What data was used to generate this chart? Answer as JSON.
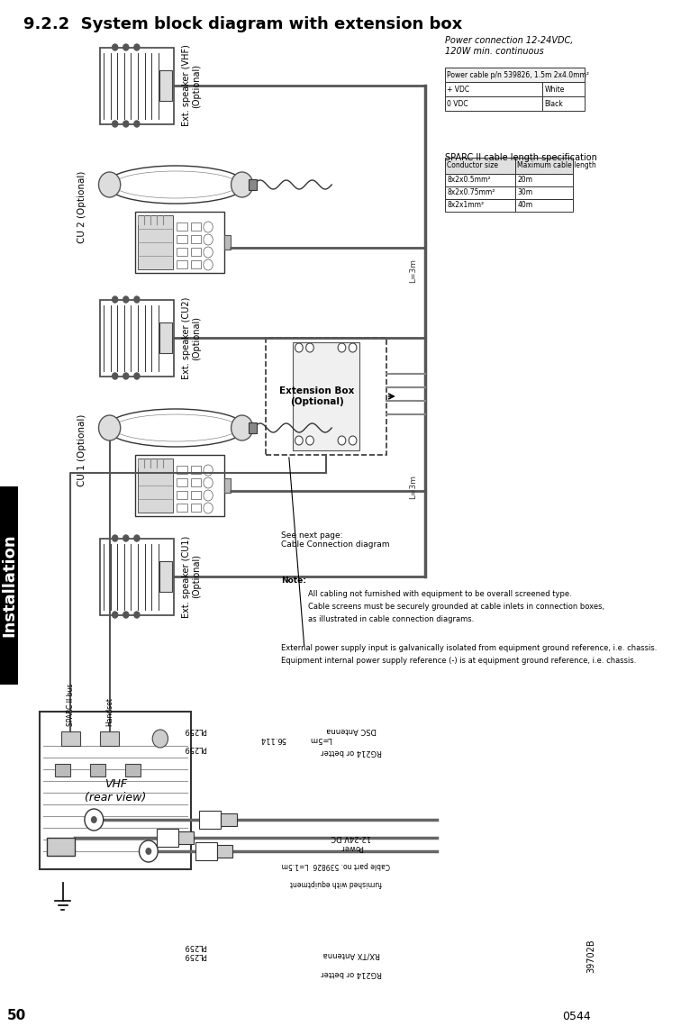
{
  "title": "9.2.2  System block diagram with extension box",
  "title_fontsize": 13,
  "title_fontweight": "bold",
  "bg_color": "#ffffff",
  "page_num": "50",
  "doc_num": "0544",
  "ref_num": "39702B",
  "rear_view_label": "VHF\n(rear view)",
  "note_text": "Note:",
  "note_lines": [
    "All cabling not furnished with equipment to be overall screened type.",
    "Cable screens must be securely grounded at cable inlets in connection boxes,",
    "as illustrated in cable connection diagrams."
  ],
  "note_lines2": [
    "External power supply input is galvanically isolated from equipment ground reference, i.e. chassis.",
    "Equipment internal power supply reference (-) is at equipment ground reference, i.e. chassis."
  ],
  "sparc_table_title": "SPARC II cable length specification",
  "sparc_table_headers": [
    "Conductor size",
    "Maximum cable length"
  ],
  "sparc_table_rows": [
    [
      "8x2x0.5mm²",
      "20m"
    ],
    [
      "8x2x0.75mm²",
      "30m"
    ],
    [
      "8x2x1mm²",
      "40m"
    ]
  ],
  "power_header": "Power connection 12-24VDC,\n120W min. continuous",
  "power_cable_label": "Power cable p/n 539826, 1.5m 2x4.0mm²",
  "power_plus_label": "+ VDC",
  "power_plus_color": "White",
  "power_minus_label": "0 VDC",
  "power_minus_color": "Black",
  "see_next": "See next page:\nCable Connection diagram",
  "lbl_vhf_spk": "Ext. speaker (VHF)\n(Optional)",
  "lbl_cu2": "CU 2 (Optional)",
  "lbl_cu2_spk": "Ext. speaker (CU2)\n(Optional)",
  "lbl_cu1": "CU 1 (Optional)",
  "lbl_cu1_spk": "Ext. speaker (CU1)\n(Optional)",
  "lbl_extbox": "Extension Box\n(Optional)",
  "lbl_sparc_bus": "SPARC II bus",
  "lbl_handset": "Handset",
  "lbl_dsc_ant": "DSC Antenna",
  "lbl_rxtx_ant": "RX/TX Antenna",
  "lbl_power": "Power\n12-24V DC",
  "lbl_cable_part": "Cable part no. 539826  L=1.5m",
  "lbl_furnished": "furnished with equiptment",
  "lbl_l3m_top": "L=3m",
  "lbl_l3m_bot": "L=3m",
  "lbl_l5m": "L=5m",
  "lbl_56114": "56.114",
  "lbl_rg214_dsc": "RG214 or better",
  "lbl_rg214_rx": "RG214 or better",
  "lbl_pl259_dsc": "PL259",
  "lbl_pl259_rx": "PL259",
  "lbl_install": "Installation"
}
